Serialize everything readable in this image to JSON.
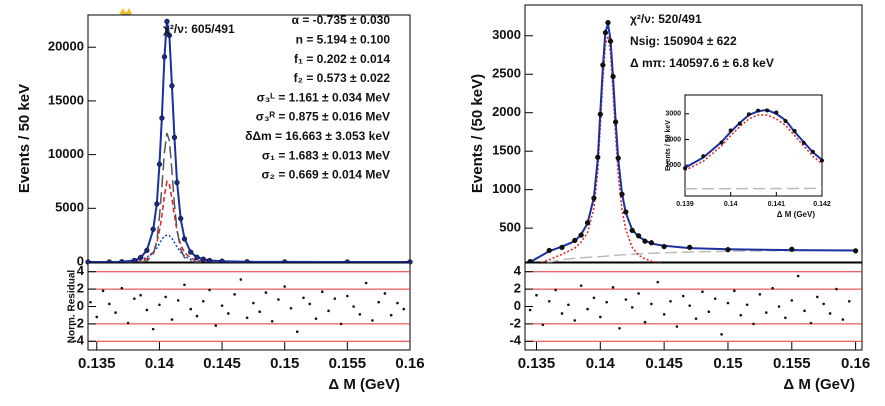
{
  "chart_data": [
    {
      "type": "line",
      "ylabel": "Events / 50 keV",
      "x": [
        0.1343,
        0.136,
        0.137,
        0.138,
        0.1385,
        0.139,
        0.1395,
        0.1398,
        0.14,
        0.1402,
        0.1404,
        0.1406,
        0.1408,
        0.141,
        0.1412,
        0.1414,
        0.1417,
        0.142,
        0.1425,
        0.143,
        0.1435,
        0.144,
        0.145,
        0.147,
        0.15,
        0.155,
        0.16
      ],
      "series": [
        {
          "color": "#e02020",
          "style": "dashed",
          "values": [
            0,
            0,
            0,
            30,
            100,
            300,
            900,
            1800,
            2900,
            4300,
            6200,
            7500,
            7200,
            5900,
            4300,
            2900,
            1600,
            900,
            350,
            170,
            90,
            50,
            20,
            5,
            0,
            0,
            0
          ]
        },
        {
          "color": "#1a3fd0",
          "style": "dotted",
          "values": [
            0,
            0,
            10,
            80,
            200,
            450,
            900,
            1300,
            1700,
            2100,
            2400,
            2500,
            2450,
            2200,
            1800,
            1400,
            900,
            550,
            250,
            120,
            60,
            30,
            10,
            3,
            0,
            0,
            0
          ]
        },
        {
          "color": "#555555",
          "style": "longdash",
          "values": [
            0,
            0,
            0,
            0,
            0,
            100,
            700,
            2000,
            4200,
            7000,
            10200,
            12000,
            11300,
            8500,
            5300,
            3000,
            1200,
            400,
            60,
            10,
            0,
            0,
            0,
            0,
            0,
            0,
            0
          ]
        },
        {
          "color": "#1a2fa0",
          "style": "solid",
          "values": [
            0,
            0,
            20,
            150,
            400,
            1100,
            3000,
            5500,
            9000,
            13500,
            19000,
            22500,
            21000,
            16500,
            11500,
            7500,
            4000,
            2200,
            900,
            450,
            250,
            150,
            70,
            20,
            5,
            0,
            0
          ]
        },
        {
          "color": "#1a2a8a",
          "style": "points",
          "values": [
            0,
            0,
            25,
            140,
            420,
            1080,
            3050,
            5400,
            9100,
            13400,
            19100,
            22400,
            21100,
            16400,
            11600,
            7400,
            4050,
            2150,
            920,
            440,
            260,
            140,
            75,
            18,
            6,
            0,
            0
          ]
        }
      ],
      "xlim": [
        0.1343,
        0.16
      ],
      "ylim": [
        0,
        23000
      ],
      "yticks": [
        0,
        5000,
        10000,
        15000,
        20000
      ],
      "texts": [
        "χ²/ν: 605/491",
        "α = -0.735 ± 0.030",
        "n = 5.194 ± 0.100",
        "f₁ = 0.202 ± 0.014",
        "f₂ = 0.573 ± 0.022",
        "σ₃ᴸ = 1.161 ± 0.034  MeV",
        "σ₃ᴿ = 0.875 ± 0.016  MeV",
        "δΔm = 16.663 ± 3.053  keV",
        "σ₁ = 1.683 ± 0.013  MeV",
        "σ₂ = 0.669 ± 0.014  MeV"
      ]
    },
    {
      "type": "scatter",
      "ylabel": "Norm. Residual",
      "xlabel": "Δ M (GeV)",
      "x": [
        0.1345,
        0.135,
        0.1355,
        0.136,
        0.1365,
        0.137,
        0.1375,
        0.138,
        0.1385,
        0.139,
        0.1395,
        0.14,
        0.1405,
        0.141,
        0.1415,
        0.142,
        0.1425,
        0.143,
        0.1435,
        0.144,
        0.1445,
        0.145,
        0.1455,
        0.146,
        0.1465,
        0.147,
        0.1475,
        0.148,
        0.1485,
        0.149,
        0.1495,
        0.15,
        0.1505,
        0.151,
        0.1515,
        0.152,
        0.1525,
        0.153,
        0.1535,
        0.154,
        0.1545,
        0.155,
        0.1555,
        0.156,
        0.1565,
        0.157,
        0.1575,
        0.158,
        0.1585,
        0.159,
        0.1595
      ],
      "values": [
        0.5,
        -1.2,
        1.8,
        0.3,
        -0.7,
        2.1,
        -1.9,
        0.9,
        1.3,
        -0.4,
        -2.6,
        0.2,
        1.1,
        -1.5,
        0.7,
        2.5,
        -0.3,
        -1.1,
        0.6,
        1.9,
        -2.2,
        0.1,
        -0.8,
        1.4,
        3.1,
        -1.3,
        0.4,
        -0.6,
        1.6,
        -1.7,
        0.8,
        2.3,
        -0.2,
        -2.9,
        1.0,
        0.3,
        -1.4,
        1.7,
        -0.5,
        0.9,
        -2.0,
        1.2,
        0.0,
        -0.9,
        2.7,
        -1.6,
        0.5,
        1.5,
        -1.0,
        0.4,
        -0.3
      ],
      "xlim": [
        0.1343,
        0.16
      ],
      "ylim": [
        -5,
        5
      ],
      "yticks": [
        -4,
        -2,
        0,
        2,
        4
      ],
      "xticks": [
        0.135,
        0.14,
        0.145,
        0.15,
        0.155,
        0.16
      ],
      "hlines": [
        -4,
        -2,
        2,
        4
      ],
      "hline_color": "#e03030"
    },
    {
      "type": "line",
      "ylabel": "Events / (50 keV)",
      "x": [
        0.1345,
        0.136,
        0.137,
        0.138,
        0.1385,
        0.139,
        0.1395,
        0.1398,
        0.14,
        0.1402,
        0.1404,
        0.1406,
        0.1408,
        0.141,
        0.1412,
        0.1414,
        0.1417,
        0.142,
        0.1425,
        0.143,
        0.1435,
        0.144,
        0.145,
        0.147,
        0.15,
        0.155,
        0.16
      ],
      "series": [
        {
          "color": "#bbbbbb",
          "style": "longdash",
          "values": [
            0,
            60,
            90,
            110,
            115,
            120,
            125,
            128,
            130,
            132,
            135,
            138,
            140,
            145,
            148,
            150,
            153,
            155,
            160,
            165,
            170,
            175,
            180,
            190,
            200,
            210,
            215
          ]
        },
        {
          "color": "#e02020",
          "style": "dotted",
          "values": [
            0,
            90,
            160,
            240,
            320,
            440,
            760,
            1240,
            1820,
            2420,
            2880,
            3000,
            2780,
            2250,
            1700,
            1190,
            740,
            480,
            250,
            150,
            100,
            70,
            40,
            20,
            10,
            5,
            2
          ]
        },
        {
          "color": "#1a2fa0",
          "style": "solid",
          "values": [
            60,
            200,
            260,
            330,
            420,
            560,
            900,
            1400,
            2000,
            2600,
            3050,
            3150,
            2950,
            2450,
            1900,
            1400,
            950,
            700,
            480,
            390,
            340,
            300,
            270,
            240,
            225,
            215,
            210
          ]
        },
        {
          "color": "#111111",
          "style": "points",
          "values": [
            65,
            210,
            250,
            340,
            410,
            570,
            890,
            1420,
            1980,
            2620,
            3040,
            3170,
            2930,
            2470,
            1880,
            1410,
            940,
            710,
            470,
            400,
            330,
            310,
            260,
            250,
            220,
            225,
            205
          ]
        }
      ],
      "xlim": [
        0.1341,
        0.1605
      ],
      "ylim": [
        60,
        3400
      ],
      "yticks": [
        500,
        1000,
        1500,
        2000,
        2500,
        3000
      ],
      "texts": [
        "χ²/ν: 520/491",
        "Nsig: 150904 ± 622",
        "Δ mπ: 140597.6 ± 6.8 keV"
      ]
    },
    {
      "type": "scatter",
      "xlabel": "Δ M (GeV)",
      "x": [
        0.1345,
        0.135,
        0.1355,
        0.136,
        0.1365,
        0.137,
        0.1375,
        0.138,
        0.1385,
        0.139,
        0.1395,
        0.14,
        0.1405,
        0.141,
        0.1415,
        0.142,
        0.1425,
        0.143,
        0.1435,
        0.144,
        0.1445,
        0.145,
        0.1455,
        0.146,
        0.1465,
        0.147,
        0.1475,
        0.148,
        0.1485,
        0.149,
        0.1495,
        0.15,
        0.1505,
        0.151,
        0.1515,
        0.152,
        0.1525,
        0.153,
        0.1535,
        0.154,
        0.1545,
        0.155,
        0.1555,
        0.156,
        0.1565,
        0.157,
        0.1575,
        0.158,
        0.1585,
        0.159,
        0.1595
      ],
      "values": [
        -0.4,
        1.3,
        -2.1,
        0.6,
        1.9,
        -0.8,
        0.2,
        -1.6,
        2.4,
        -0.3,
        1.0,
        -1.2,
        0.5,
        2.2,
        -2.5,
        0.8,
        -0.1,
        1.5,
        -1.8,
        0.3,
        2.8,
        -0.9,
        0.6,
        -2.3,
        1.2,
        0.1,
        -1.4,
        1.7,
        -0.6,
        0.9,
        -3.2,
        0.4,
        1.8,
        -1.0,
        0.2,
        -2.0,
        1.4,
        -0.7,
        2.1,
        0.0,
        -1.3,
        0.7,
        3.5,
        -0.5,
        -1.9,
        1.1,
        0.3,
        -0.8,
        2.0,
        -1.5,
        0.6
      ],
      "xlim": [
        0.1341,
        0.1605
      ],
      "ylim": [
        -5,
        5
      ],
      "yticks": [
        -4,
        -2,
        0,
        2,
        4
      ],
      "xticks": [
        0.135,
        0.14,
        0.145,
        0.15,
        0.155,
        0.16
      ],
      "hlines": [
        -4,
        -2,
        2,
        4
      ],
      "hline_color": "#e03030"
    },
    {
      "type": "line",
      "ylabel": "Events / 50 keV",
      "xlabel": "Δ M (GeV)",
      "x": [
        0.139,
        0.1394,
        0.1398,
        0.14,
        0.1402,
        0.1404,
        0.1406,
        0.1408,
        0.141,
        0.1412,
        0.1414,
        0.1416,
        0.1418,
        0.142
      ],
      "series": [
        {
          "color": "#bbbbbb",
          "style": "longdash",
          "values": [
            80,
            82,
            84,
            85,
            86,
            87,
            88,
            89,
            90,
            91,
            92,
            93,
            94,
            95
          ]
        },
        {
          "color": "#e02020",
          "style": "dotted",
          "values": [
            800,
            1150,
            1750,
            2150,
            2500,
            2800,
            2950,
            2950,
            2800,
            2550,
            2150,
            1750,
            1350,
            1050
          ]
        },
        {
          "color": "#1a2fa0",
          "style": "solid",
          "values": [
            900,
            1300,
            1900,
            2300,
            2650,
            2950,
            3100,
            3150,
            3000,
            2750,
            2300,
            1900,
            1500,
            1200
          ]
        },
        {
          "color": "#111111",
          "style": "points",
          "values": [
            880,
            1350,
            1880,
            2350,
            2620,
            2980,
            3120,
            3130,
            3050,
            2720,
            2330,
            1870,
            1520,
            1180
          ]
        }
      ],
      "xlim": [
        0.139,
        0.142
      ],
      "ylim": [
        -200,
        3730
      ],
      "yticks": [
        1000,
        2000,
        3000
      ],
      "xticks": [
        0.139,
        0.14,
        0.141,
        0.142
      ]
    }
  ]
}
